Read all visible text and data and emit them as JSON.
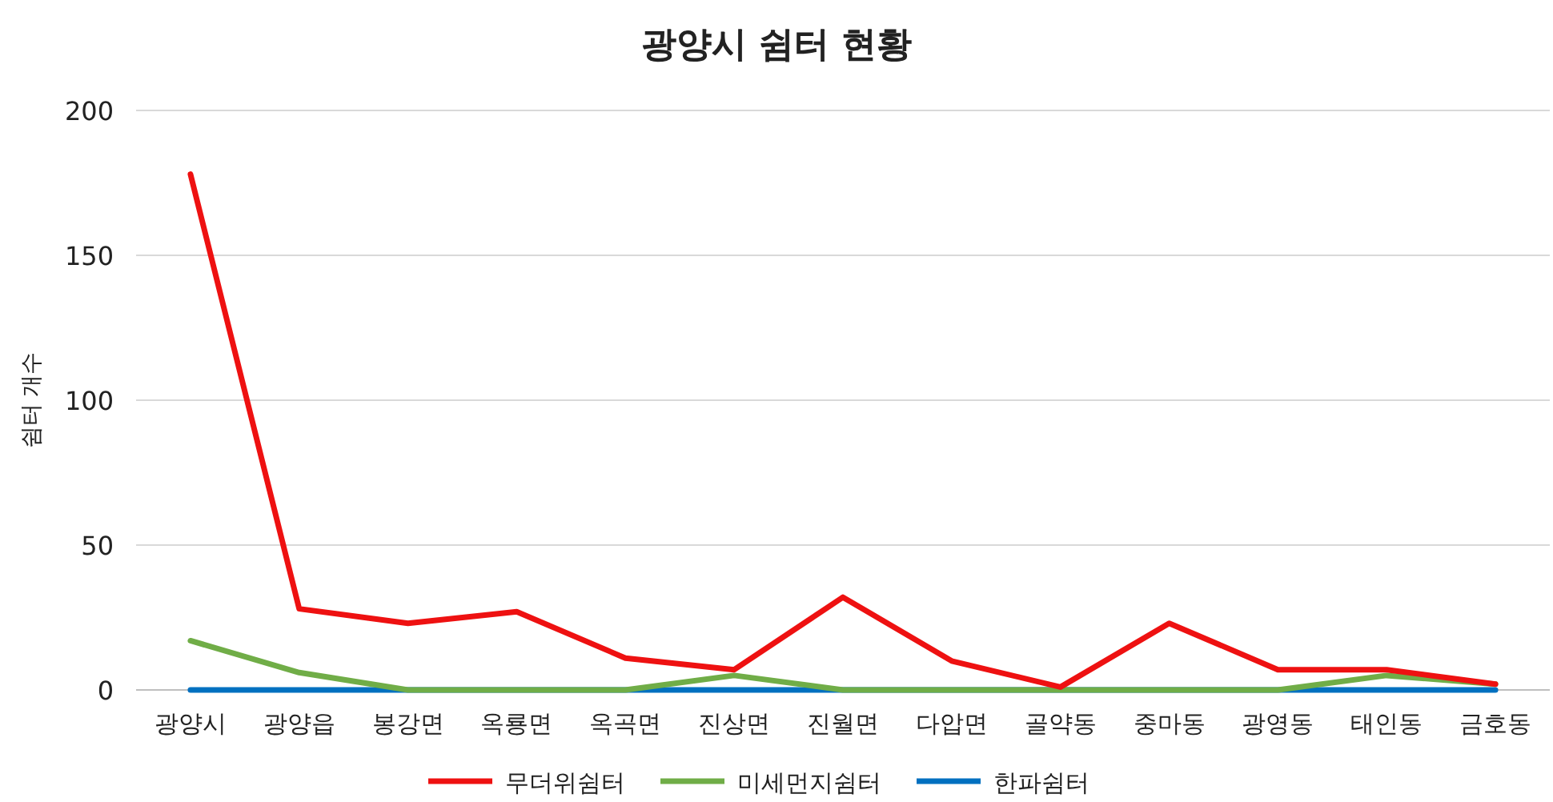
{
  "chart_data": {
    "type": "line",
    "title": "광양시 쉼터 현황",
    "ylabel": "쉼터 개수",
    "categories": [
      "광양시",
      "광양읍",
      "봉강면",
      "옥룡면",
      "옥곡면",
      "진상면",
      "진월면",
      "다압면",
      "골약동",
      "중마동",
      "광영동",
      "태인동",
      "금호동"
    ],
    "series": [
      {
        "name": "무더위쉼터",
        "color": "#ee1111",
        "values": [
          178,
          28,
          23,
          27,
          11,
          7,
          32,
          10,
          1,
          23,
          7,
          7,
          2
        ]
      },
      {
        "name": "미세먼지쉼터",
        "color": "#70ad47",
        "values": [
          17,
          6,
          0,
          0,
          0,
          5,
          0,
          0,
          0,
          0,
          0,
          5,
          2
        ]
      },
      {
        "name": "한파쉼터",
        "color": "#0070c0",
        "values": [
          0,
          0,
          0,
          0,
          0,
          0,
          0,
          0,
          0,
          0,
          0,
          0,
          0
        ]
      }
    ],
    "ylim": [
      0,
      200
    ],
    "yticks": [
      0,
      50,
      100,
      150,
      200
    ],
    "grid": "y",
    "legend": "bottom",
    "marker": "none",
    "line_style": "solid"
  }
}
